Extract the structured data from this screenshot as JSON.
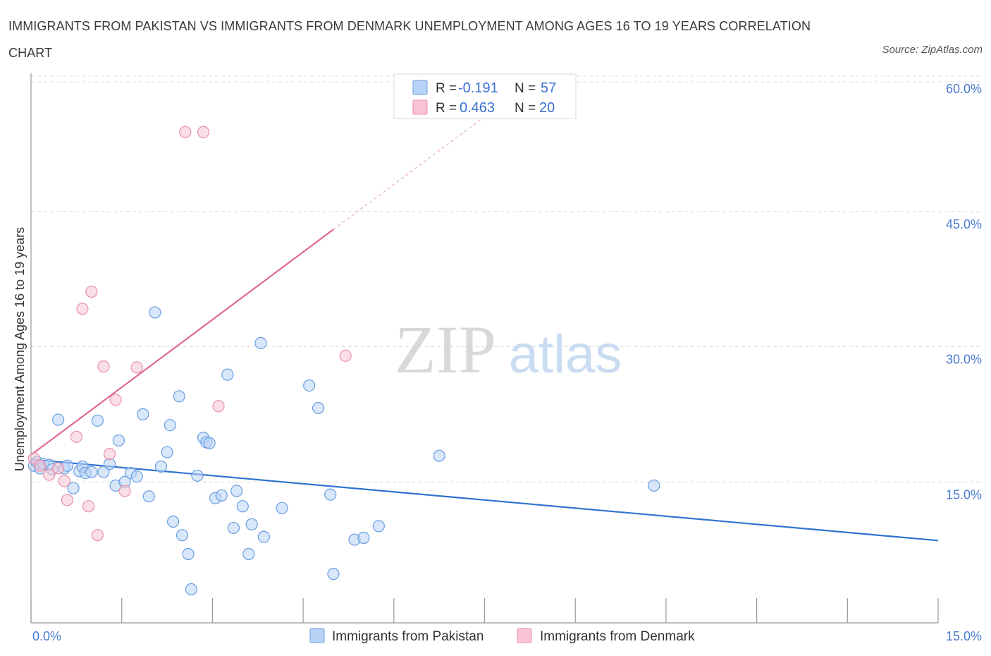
{
  "title": "IMMIGRANTS FROM PAKISTAN VS IMMIGRANTS FROM DENMARK UNEMPLOYMENT AMONG AGES 16 TO 19 YEARS CORRELATION CHART",
  "source": "Source: ZipAtlas.com",
  "watermark": {
    "zip": "ZIP",
    "atlas": "atlas"
  },
  "colors": {
    "pakistan_fill": "#b8d3f5",
    "pakistan_stroke": "#6a9ee0",
    "pakistan_line": "#2f74d0",
    "denmark_fill": "#f8c4d4",
    "denmark_stroke": "#e890ac",
    "denmark_line": "#e06a92",
    "grid": "#dddddd",
    "tick_label": "#4a7bd0"
  },
  "legend": {
    "rows": [
      {
        "r_label": "R =",
        "r_value": "-0.191",
        "n_label": "N =",
        "n_value": "57",
        "series": "pakistan"
      },
      {
        "r_label": "R =",
        "r_value": "0.463",
        "n_label": "N =",
        "n_value": "20",
        "series": "denmark"
      }
    ]
  },
  "chart_data": {
    "type": "scatter",
    "xlabel": "",
    "ylabel": "Unemployment Among Ages 16 to 19 years",
    "xlim": [
      0,
      15
    ],
    "ylim": [
      0,
      60
    ],
    "x_tick_labels": [
      "0.0%",
      "15.0%"
    ],
    "y_ticks": [
      15,
      30,
      45,
      60
    ],
    "y_tick_labels": [
      "15.0%",
      "30.0%",
      "45.0%",
      "60.0%"
    ],
    "grid": true,
    "series": [
      {
        "name": "Immigrants from Pakistan",
        "key": "pakistan",
        "r": -0.191,
        "n": 57,
        "trend": {
          "x0": 0,
          "y0": 17.5,
          "x1": 15,
          "y1": 8.5
        },
        "points": [
          [
            0.05,
            16.8
          ],
          [
            0.1,
            17.2
          ],
          [
            0.15,
            16.5
          ],
          [
            0.2,
            17.0
          ],
          [
            0.3,
            16.9
          ],
          [
            0.35,
            16.4
          ],
          [
            0.45,
            21.9
          ],
          [
            0.55,
            16.5
          ],
          [
            0.6,
            16.8
          ],
          [
            0.7,
            14.3
          ],
          [
            0.8,
            16.2
          ],
          [
            0.85,
            16.7
          ],
          [
            0.9,
            16.0
          ],
          [
            1.0,
            16.1
          ],
          [
            1.1,
            21.8
          ],
          [
            1.2,
            16.1
          ],
          [
            1.3,
            17.0
          ],
          [
            1.4,
            14.6
          ],
          [
            1.45,
            19.6
          ],
          [
            1.55,
            15.0
          ],
          [
            1.65,
            16.0
          ],
          [
            1.75,
            15.6
          ],
          [
            1.85,
            22.5
          ],
          [
            1.95,
            13.4
          ],
          [
            2.05,
            33.8
          ],
          [
            2.15,
            16.7
          ],
          [
            2.25,
            18.3
          ],
          [
            2.3,
            21.3
          ],
          [
            2.35,
            10.6
          ],
          [
            2.45,
            24.5
          ],
          [
            2.5,
            9.1
          ],
          [
            2.6,
            7.0
          ],
          [
            2.65,
            3.1
          ],
          [
            2.75,
            15.7
          ],
          [
            2.85,
            19.9
          ],
          [
            2.9,
            19.4
          ],
          [
            2.95,
            19.3
          ],
          [
            3.05,
            13.2
          ],
          [
            3.15,
            13.5
          ],
          [
            3.25,
            26.9
          ],
          [
            3.35,
            9.9
          ],
          [
            3.4,
            14.0
          ],
          [
            3.5,
            12.3
          ],
          [
            3.6,
            7.0
          ],
          [
            3.65,
            10.3
          ],
          [
            3.8,
            30.4
          ],
          [
            3.85,
            8.9
          ],
          [
            4.15,
            12.1
          ],
          [
            4.6,
            25.7
          ],
          [
            4.75,
            23.2
          ],
          [
            4.95,
            13.6
          ],
          [
            5.0,
            4.8
          ],
          [
            5.35,
            8.6
          ],
          [
            5.5,
            8.8
          ],
          [
            5.75,
            10.1
          ],
          [
            6.75,
            17.9
          ],
          [
            10.3,
            14.6
          ]
        ]
      },
      {
        "name": "Immigrants from Denmark",
        "key": "denmark",
        "r": 0.463,
        "n": 20,
        "trend": {
          "x0": 0,
          "y0": 18.0,
          "x1": 5.0,
          "y1": 43.0
        },
        "trend_dashed_to": {
          "x": 8.0,
          "y": 58.0
        },
        "points": [
          [
            0.05,
            17.6
          ],
          [
            0.15,
            16.8
          ],
          [
            0.3,
            15.8
          ],
          [
            0.45,
            16.5
          ],
          [
            0.55,
            15.1
          ],
          [
            0.6,
            13.0
          ],
          [
            0.75,
            20.0
          ],
          [
            0.85,
            34.2
          ],
          [
            0.95,
            12.3
          ],
          [
            1.0,
            36.1
          ],
          [
            1.1,
            9.1
          ],
          [
            1.2,
            27.8
          ],
          [
            1.3,
            18.1
          ],
          [
            1.4,
            24.1
          ],
          [
            1.55,
            14.0
          ],
          [
            1.75,
            27.7
          ],
          [
            2.55,
            53.8
          ],
          [
            2.85,
            53.8
          ],
          [
            3.1,
            23.4
          ],
          [
            5.2,
            29.0
          ]
        ]
      }
    ]
  },
  "bottom_legend": [
    "Immigrants from Pakistan",
    "Immigrants from Denmark"
  ]
}
